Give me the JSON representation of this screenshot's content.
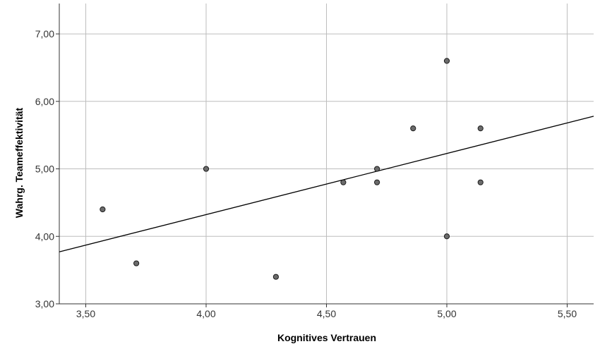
{
  "chart_data": {
    "type": "scatter",
    "title": "",
    "xlabel": "Kognitives Vertrauen",
    "ylabel": "Wahrg. Teameffektivität",
    "xlim": [
      3.39,
      5.61
    ],
    "ylim": [
      3.0,
      7.45
    ],
    "x_ticks": [
      3.5,
      4.0,
      4.5,
      5.0,
      5.5
    ],
    "x_tick_labels": [
      "3,50",
      "4,00",
      "4,50",
      "5,00",
      "5,50"
    ],
    "y_ticks": [
      3.0,
      4.0,
      5.0,
      6.0,
      7.0
    ],
    "y_tick_labels": [
      "3,00",
      "4,00",
      "5,00",
      "6,00",
      "7,00"
    ],
    "grid": true,
    "points": [
      {
        "x": 3.57,
        "y": 4.4
      },
      {
        "x": 3.71,
        "y": 3.6
      },
      {
        "x": 4.0,
        "y": 5.0
      },
      {
        "x": 4.29,
        "y": 3.4
      },
      {
        "x": 4.57,
        "y": 4.8
      },
      {
        "x": 4.71,
        "y": 5.0
      },
      {
        "x": 4.71,
        "y": 4.8
      },
      {
        "x": 4.86,
        "y": 5.6
      },
      {
        "x": 5.0,
        "y": 6.6
      },
      {
        "x": 5.0,
        "y": 4.0
      },
      {
        "x": 5.14,
        "y": 5.6
      },
      {
        "x": 5.14,
        "y": 4.8
      }
    ],
    "fit_line": {
      "type": "linear",
      "x": [
        3.39,
        5.61
      ],
      "y": [
        3.77,
        5.78
      ]
    },
    "colors": {
      "point_fill": "#6b6b6b",
      "point_stroke": "#1a1a1a",
      "grid": "#bdbdbd",
      "line": "#000000"
    }
  }
}
